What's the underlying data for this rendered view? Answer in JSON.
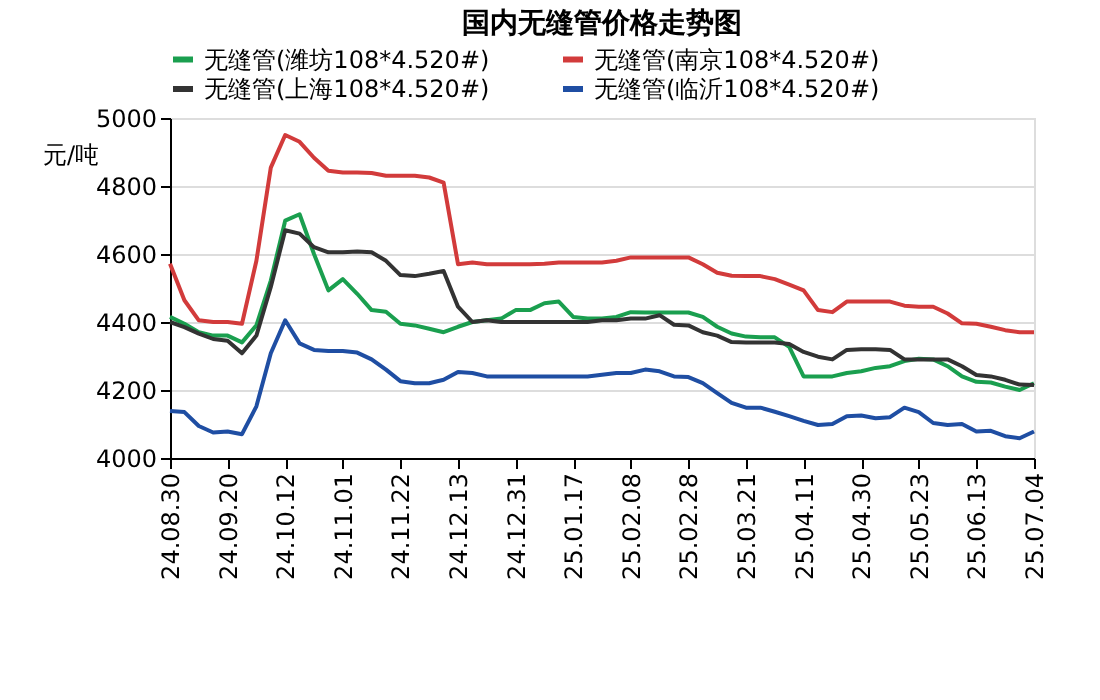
{
  "chart_data": {
    "type": "line",
    "title": "国内无缝管价格走势图",
    "ylabel": "元/吨",
    "categories": [
      "24.08.30",
      null,
      null,
      null,
      "24.09.20",
      null,
      null,
      null,
      "24.10.12",
      null,
      null,
      null,
      "24.11.01",
      null,
      null,
      null,
      "24.11.22",
      null,
      null,
      null,
      "24.12.13",
      null,
      null,
      null,
      "24.12.31",
      null,
      null,
      null,
      "25.01.17",
      null,
      null,
      null,
      "25.02.08",
      null,
      null,
      null,
      "25.02.28",
      null,
      null,
      null,
      "25.03.21",
      null,
      null,
      null,
      "25.04.11",
      null,
      null,
      null,
      "25.04.30",
      null,
      null,
      null,
      "25.05.23",
      null,
      null,
      null,
      "25.06.13",
      null,
      null,
      null,
      "25.07.04"
    ],
    "series": [
      {
        "name": "无缝管(潍坊108*4.520#)",
        "color": "#1a9f4f",
        "values": [
          4415,
          4395,
          4370,
          4360,
          4360,
          4340,
          4390,
          4522,
          4698,
          4717,
          4600,
          4493,
          4526,
          4483,
          4435,
          4430,
          4395,
          4390,
          4380,
          4370,
          4386,
          4400,
          4405,
          4410,
          4435,
          4435,
          4455,
          4460,
          4415,
          4410,
          4410,
          4415,
          4429,
          4428,
          4428,
          4428,
          4428,
          4415,
          4386,
          4366,
          4357,
          4355,
          4355,
          4327,
          4240,
          4240,
          4240,
          4250,
          4255,
          4265,
          4270,
          4285,
          4292,
          4290,
          4270,
          4240,
          4224,
          4222,
          4210,
          4200,
          4220
        ]
      },
      {
        "name": "无缝管(南京108*4.520#)",
        "color": "#d23b3b",
        "values": [
          4571,
          4464,
          4405,
          4400,
          4400,
          4395,
          4580,
          4854,
          4950,
          4930,
          4883,
          4845,
          4840,
          4840,
          4838,
          4830,
          4830,
          4830,
          4825,
          4810,
          4570,
          4575,
          4570,
          4570,
          4570,
          4570,
          4571,
          4575,
          4575,
          4575,
          4575,
          4580,
          4590,
          4590,
          4590,
          4590,
          4590,
          4570,
          4545,
          4536,
          4535,
          4535,
          4526,
          4510,
          4493,
          4435,
          4429,
          4460,
          4460,
          4460,
          4460,
          4448,
          4445,
          4445,
          4425,
          4396,
          4395,
          4386,
          4376,
          4370,
          4370
        ]
      },
      {
        "name": "无缝管(上海108*4.520#)",
        "color": "#333333",
        "values": [
          4400,
          4385,
          4366,
          4350,
          4345,
          4308,
          4360,
          4503,
          4670,
          4660,
          4620,
          4605,
          4605,
          4607,
          4605,
          4580,
          4538,
          4535,
          4542,
          4550,
          4445,
          4400,
          4405,
          4400,
          4400,
          4400,
          4400,
          4400,
          4400,
          4400,
          4405,
          4405,
          4410,
          4410,
          4420,
          4392,
          4390,
          4370,
          4360,
          4341,
          4340,
          4340,
          4340,
          4335,
          4312,
          4298,
          4290,
          4318,
          4320,
          4320,
          4318,
          4290,
          4290,
          4290,
          4290,
          4270,
          4244,
          4240,
          4230,
          4216,
          4215
        ]
      },
      {
        "name": "无缝管(临沂108*4.520#)",
        "color": "#1f4ea3",
        "values": [
          4138,
          4135,
          4094,
          4075,
          4078,
          4070,
          4152,
          4308,
          4405,
          4337,
          4318,
          4315,
          4315,
          4310,
          4290,
          4260,
          4226,
          4220,
          4220,
          4230,
          4253,
          4250,
          4240,
          4240,
          4240,
          4240,
          4240,
          4240,
          4240,
          4240,
          4245,
          4250,
          4250,
          4260,
          4255,
          4240,
          4238,
          4220,
          4191,
          4162,
          4148,
          4148,
          4136,
          4123,
          4109,
          4097,
          4100,
          4123,
          4125,
          4117,
          4120,
          4148,
          4135,
          4103,
          4097,
          4100,
          4078,
          4080,
          4064,
          4058,
          4078
        ]
      }
    ],
    "ylim": [
      4000,
      5000
    ],
    "yticks": [
      4000,
      4200,
      4400,
      4600,
      4800,
      5000
    ],
    "grid": "y",
    "legend": "top",
    "marker": "none",
    "line_style": "solid"
  }
}
